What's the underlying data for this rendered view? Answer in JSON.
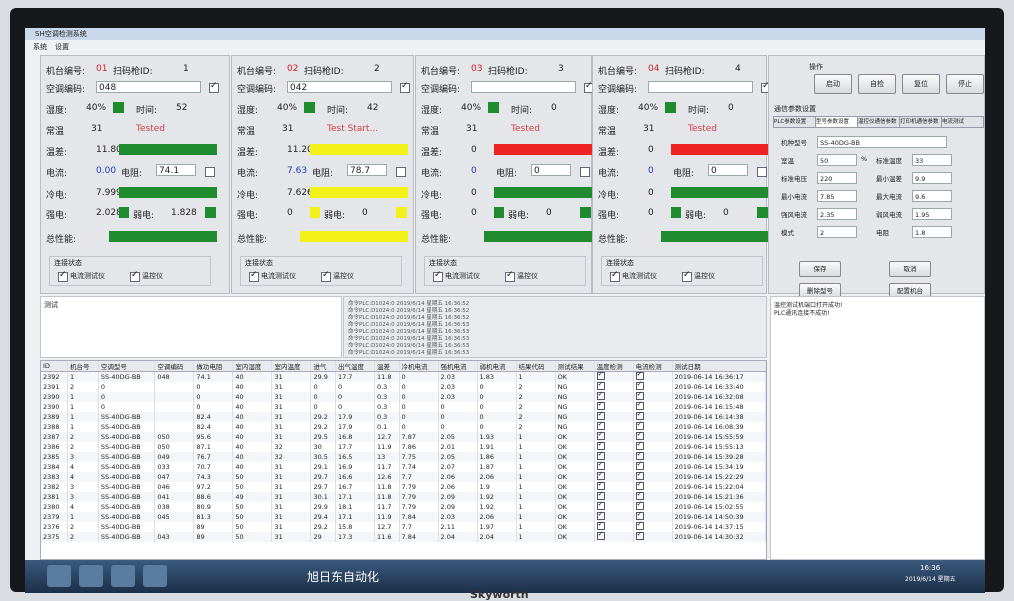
{
  "window": {
    "title": "SH空调检测系统",
    "menu": [
      "系统",
      "设置"
    ]
  },
  "station_labels": {
    "machine": "机台编号:",
    "scanner": "扫码枪ID:",
    "code": "空调编码:",
    "humidity": "湿度:",
    "time": "时间:",
    "temp": "常温",
    "diff": "温差:",
    "current": "电流:",
    "resistance": "电阻:",
    "cold": "冷电:",
    "strong": "强电:",
    "weak": "弱电:",
    "total": "总性能:",
    "conn": "连接状态",
    "devices": [
      "电流测试仪",
      "温控仪"
    ]
  },
  "stations": [
    {
      "machine_no": "01",
      "scanner_id": "1",
      "code": "048",
      "humidity": "40%",
      "time": "52",
      "temp": "31",
      "status": "Tested",
      "diff": "11.80",
      "current": "0.00",
      "resistance": "74.1",
      "cold": "7.999",
      "strong": "2.028",
      "weak": "1.828",
      "humidity_color": "#1f8a2e",
      "diff_color": "#1f8a2e",
      "bar_color": "#1f8a2e"
    },
    {
      "machine_no": "02",
      "scanner_id": "2",
      "code": "042",
      "humidity": "40%",
      "time": "42",
      "temp": "31",
      "status": "Test Start...",
      "diff": "11.20",
      "current": "7.63",
      "resistance": "78.7",
      "cold": "7.626",
      "strong": "0",
      "weak": "0",
      "humidity_color": "#1f8a2e",
      "diff_color": "#f2f21a",
      "bar_color": "#f2f21a"
    },
    {
      "machine_no": "03",
      "scanner_id": "3",
      "code": "",
      "humidity": "40%",
      "time": "0",
      "temp": "31",
      "status": "Tested",
      "diff": "0",
      "current": "0",
      "resistance": "0",
      "cold": "0",
      "strong": "0",
      "weak": "0",
      "humidity_color": "#1f8a2e",
      "diff_color": "#ee2222",
      "bar_color": "#1f8a2e"
    },
    {
      "machine_no": "04",
      "scanner_id": "4",
      "code": "",
      "humidity": "40%",
      "time": "0",
      "temp": "31",
      "status": "Tested",
      "diff": "0",
      "current": "0",
      "resistance": "0",
      "cold": "0",
      "strong": "0",
      "weak": "0",
      "humidity_color": "#1f8a2e",
      "diff_color": "#ee2222",
      "bar_color": "#1f8a2e"
    }
  ],
  "control": {
    "title": "操作",
    "buttons": [
      "启动",
      "自检",
      "复位",
      "停止"
    ]
  },
  "settings": {
    "title": "通信参数设置",
    "tabs": [
      "PLC参数设置",
      "型号参数设置",
      "温控仪通信参数",
      "打印机通信参数",
      "电流测试"
    ],
    "fields": [
      {
        "label": "机种型号",
        "value": "SS-40DG-BB"
      },
      {
        "label": "室温",
        "value": "50",
        "unit": "%"
      },
      {
        "label": "标准温度",
        "value": "33"
      },
      {
        "label": "标准电压",
        "value": "220"
      },
      {
        "label": "最小温差",
        "value": "9.9"
      },
      {
        "label": "最小电流",
        "value": "7.85"
      },
      {
        "label": "最大电流",
        "value": "9.6"
      },
      {
        "label": "强风电流",
        "value": "2.35"
      },
      {
        "label": "弱风电流",
        "value": "1.95"
      },
      {
        "label": "模式",
        "value": "2"
      },
      {
        "label": "电阻",
        "value": "1.8"
      }
    ],
    "buttons": [
      "保存",
      "取消",
      "删除型号",
      "配置机台"
    ]
  },
  "status_log": [
    "温控测试机端口打开成功!",
    "PLC通讯连接不成功!"
  ],
  "log": {
    "title": "测试",
    "lines": [
      "命令PLC:D1024:0   2019/6/14 星期五 16:36:52",
      "命令PLC:D1024:0   2019/6/14 星期五 16:36:52",
      "命令PLC:D1024:0   2019/6/14 星期五 16:36:52",
      "命令PLC:D1024:0   2019/6/14 星期五 16:36:53",
      "命令PLC:D1024:0   2019/6/14 星期五 16:36:53",
      "命令PLC:D1024:0   2019/6/14 星期五 16:36:53",
      "命令PLC:D1024:0   2019/6/14 星期五 16:36:53",
      "命令PLC:D1024:0   2019/6/14 星期五 16:36:53"
    ]
  },
  "table": {
    "columns": [
      "ID",
      "机台号",
      "空调型号",
      "空调编码",
      "做功电阻",
      "室内湿度",
      "室内温度",
      "进气",
      "出气温度",
      "温差",
      "冷机电流",
      "强机电流",
      "弱机电流",
      "结果代码",
      "测试结果",
      "温度检测",
      "电流检测",
      "测试日期"
    ],
    "rows": [
      [
        "2392",
        "1",
        "SS-40DG-BB",
        "048",
        "74.1",
        "40",
        "31",
        "29.9",
        "17.7",
        "11.8",
        "0",
        "2.03",
        "1.83",
        "1",
        "OK",
        true,
        true,
        "2019-06-14 16:36:17"
      ],
      [
        "2391",
        "2",
        "0",
        "",
        "0",
        "40",
        "31",
        "0",
        "0",
        "0.3",
        "0",
        "2.03",
        "0",
        "2",
        "NG",
        true,
        true,
        "2019-06-14 16:33:40"
      ],
      [
        "2390",
        "1",
        "0",
        "",
        "0",
        "40",
        "31",
        "0",
        "0",
        "0.3",
        "0",
        "2.03",
        "0",
        "2",
        "NG",
        true,
        true,
        "2019-06-14 16:32:08"
      ],
      [
        "2390",
        "1",
        "0",
        "",
        "0",
        "40",
        "31",
        "0",
        "0",
        "0.3",
        "0",
        "0",
        "0",
        "2",
        "NG",
        true,
        true,
        "2019-06-14 16:15:48"
      ],
      [
        "2389",
        "1",
        "SS-40DG-BB",
        "",
        "82.4",
        "40",
        "31",
        "29.2",
        "17.9",
        "0.3",
        "0",
        "0",
        "0",
        "2",
        "NG",
        true,
        true,
        "2019-06-14 16:14:38"
      ],
      [
        "2388",
        "1",
        "SS-40DG-BB",
        "",
        "82.4",
        "40",
        "31",
        "29.2",
        "17.9",
        "0.1",
        "0",
        "0",
        "0",
        "2",
        "NG",
        true,
        true,
        "2019-06-14 16:08:39"
      ],
      [
        "2387",
        "2",
        "SS-40DG-BB",
        "050",
        "95.6",
        "40",
        "31",
        "29.5",
        "16.8",
        "12.7",
        "7.87",
        "2.05",
        "1.93",
        "1",
        "OK",
        true,
        true,
        "2019-06-14 15:55:59"
      ],
      [
        "2386",
        "2",
        "SS-40DG-BB",
        "050",
        "87.1",
        "40",
        "32",
        "30",
        "17.7",
        "11.9",
        "7.86",
        "2.01",
        "1.91",
        "1",
        "OK",
        true,
        true,
        "2019-06-14 15:55:13"
      ],
      [
        "2385",
        "3",
        "SS-40DG-BB",
        "049",
        "76.7",
        "40",
        "32",
        "30.5",
        "16.5",
        "13",
        "7.75",
        "2.05",
        "1.86",
        "1",
        "OK",
        true,
        true,
        "2019-06-14 15:39:28"
      ],
      [
        "2384",
        "4",
        "SS-40DG-BB",
        "033",
        "70.7",
        "40",
        "31",
        "29.1",
        "16.9",
        "11.7",
        "7.74",
        "2.07",
        "1.87",
        "1",
        "OK",
        true,
        true,
        "2019-06-14 15:34:19"
      ],
      [
        "2383",
        "4",
        "SS-40DG-BB",
        "047",
        "74.3",
        "50",
        "31",
        "29.7",
        "16.6",
        "12.6",
        "7.7",
        "2.06",
        "2.06",
        "1",
        "OK",
        true,
        true,
        "2019-06-14 15:22:29"
      ],
      [
        "2382",
        "3",
        "SS-40DG-BB",
        "046",
        "97.2",
        "50",
        "31",
        "29.7",
        "16.7",
        "11.8",
        "7.79",
        "2.06",
        "1.9",
        "1",
        "OK",
        true,
        true,
        "2019-06-14 15:22:04"
      ],
      [
        "2381",
        "3",
        "SS-40DG-BB",
        "041",
        "88.6",
        "49",
        "31",
        "30.1",
        "17.1",
        "11.8",
        "7.79",
        "2.09",
        "1.92",
        "1",
        "OK",
        true,
        true,
        "2019-06-14 15:21:36"
      ],
      [
        "2380",
        "4",
        "SS-40DG-BB",
        "038",
        "80.9",
        "50",
        "31",
        "29.9",
        "18.1",
        "11.7",
        "7.79",
        "2.09",
        "1.92",
        "1",
        "OK",
        true,
        true,
        "2019-06-14 15:02:55"
      ],
      [
        "2379",
        "1",
        "SS-40DG-BB",
        "045",
        "81.3",
        "50",
        "31",
        "29.4",
        "17.1",
        "11.9",
        "7.84",
        "2.03",
        "2.06",
        "1",
        "OK",
        true,
        true,
        "2019-06-14 14:50:39"
      ],
      [
        "2376",
        "2",
        "SS-40DG-BB",
        "",
        "89",
        "50",
        "31",
        "29.2",
        "15.8",
        "12.7",
        "7.7",
        "2.11",
        "1.97",
        "1",
        "OK",
        true,
        true,
        "2019-06-14 14:37:15"
      ],
      [
        "2375",
        "2",
        "SS-40DG-BB",
        "043",
        "89",
        "50",
        "31",
        "29",
        "17.3",
        "11.6",
        "7.84",
        "2.04",
        "2.04",
        "1",
        "OK",
        true,
        true,
        "2019-06-14 14:30:32"
      ]
    ]
  },
  "taskbar": {
    "caption": "旭日东自动化",
    "time": "16:36",
    "date": "2019/6/14 星期五"
  },
  "monitor_brand": "Skyworth"
}
